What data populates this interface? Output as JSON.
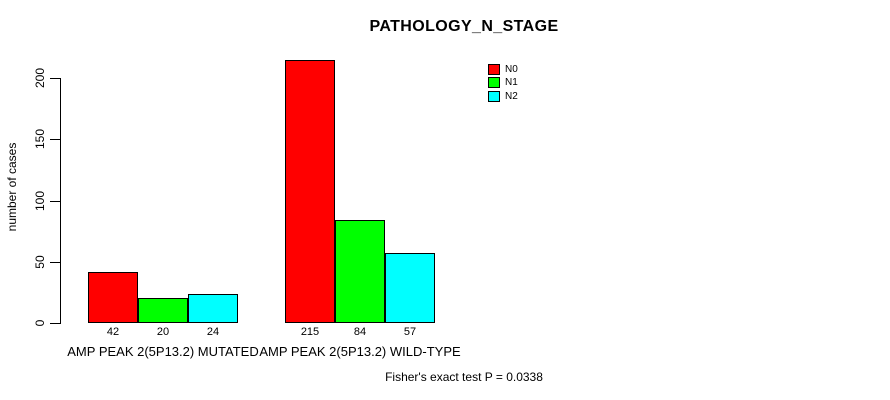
{
  "chart_data": {
    "type": "bar",
    "title": "PATHOLOGY_N_STAGE",
    "ylabel": "number of cases",
    "xlabel": "",
    "categories": [
      "AMP PEAK 2(5P13.2) MUTATED",
      "AMP PEAK 2(5P13.2) WILD-TYPE"
    ],
    "series": [
      {
        "name": "N0",
        "color": "#FF0000",
        "values": [
          42,
          215
        ]
      },
      {
        "name": "N1",
        "color": "#00FF00",
        "values": [
          20,
          84
        ]
      },
      {
        "name": "N2",
        "color": "#00FFFF",
        "values": [
          24,
          57
        ]
      }
    ],
    "yticks": [
      0,
      50,
      100,
      150,
      200
    ],
    "ylim": [
      0,
      215
    ],
    "grid": false,
    "legend_position": "top-right",
    "show_value_labels": true,
    "annotation": "Fisher's exact test P = 0.0338"
  },
  "colors": {
    "background": "#FFFFFF",
    "axis": "#000000",
    "text": "#000000",
    "bar_border": "#000000"
  }
}
